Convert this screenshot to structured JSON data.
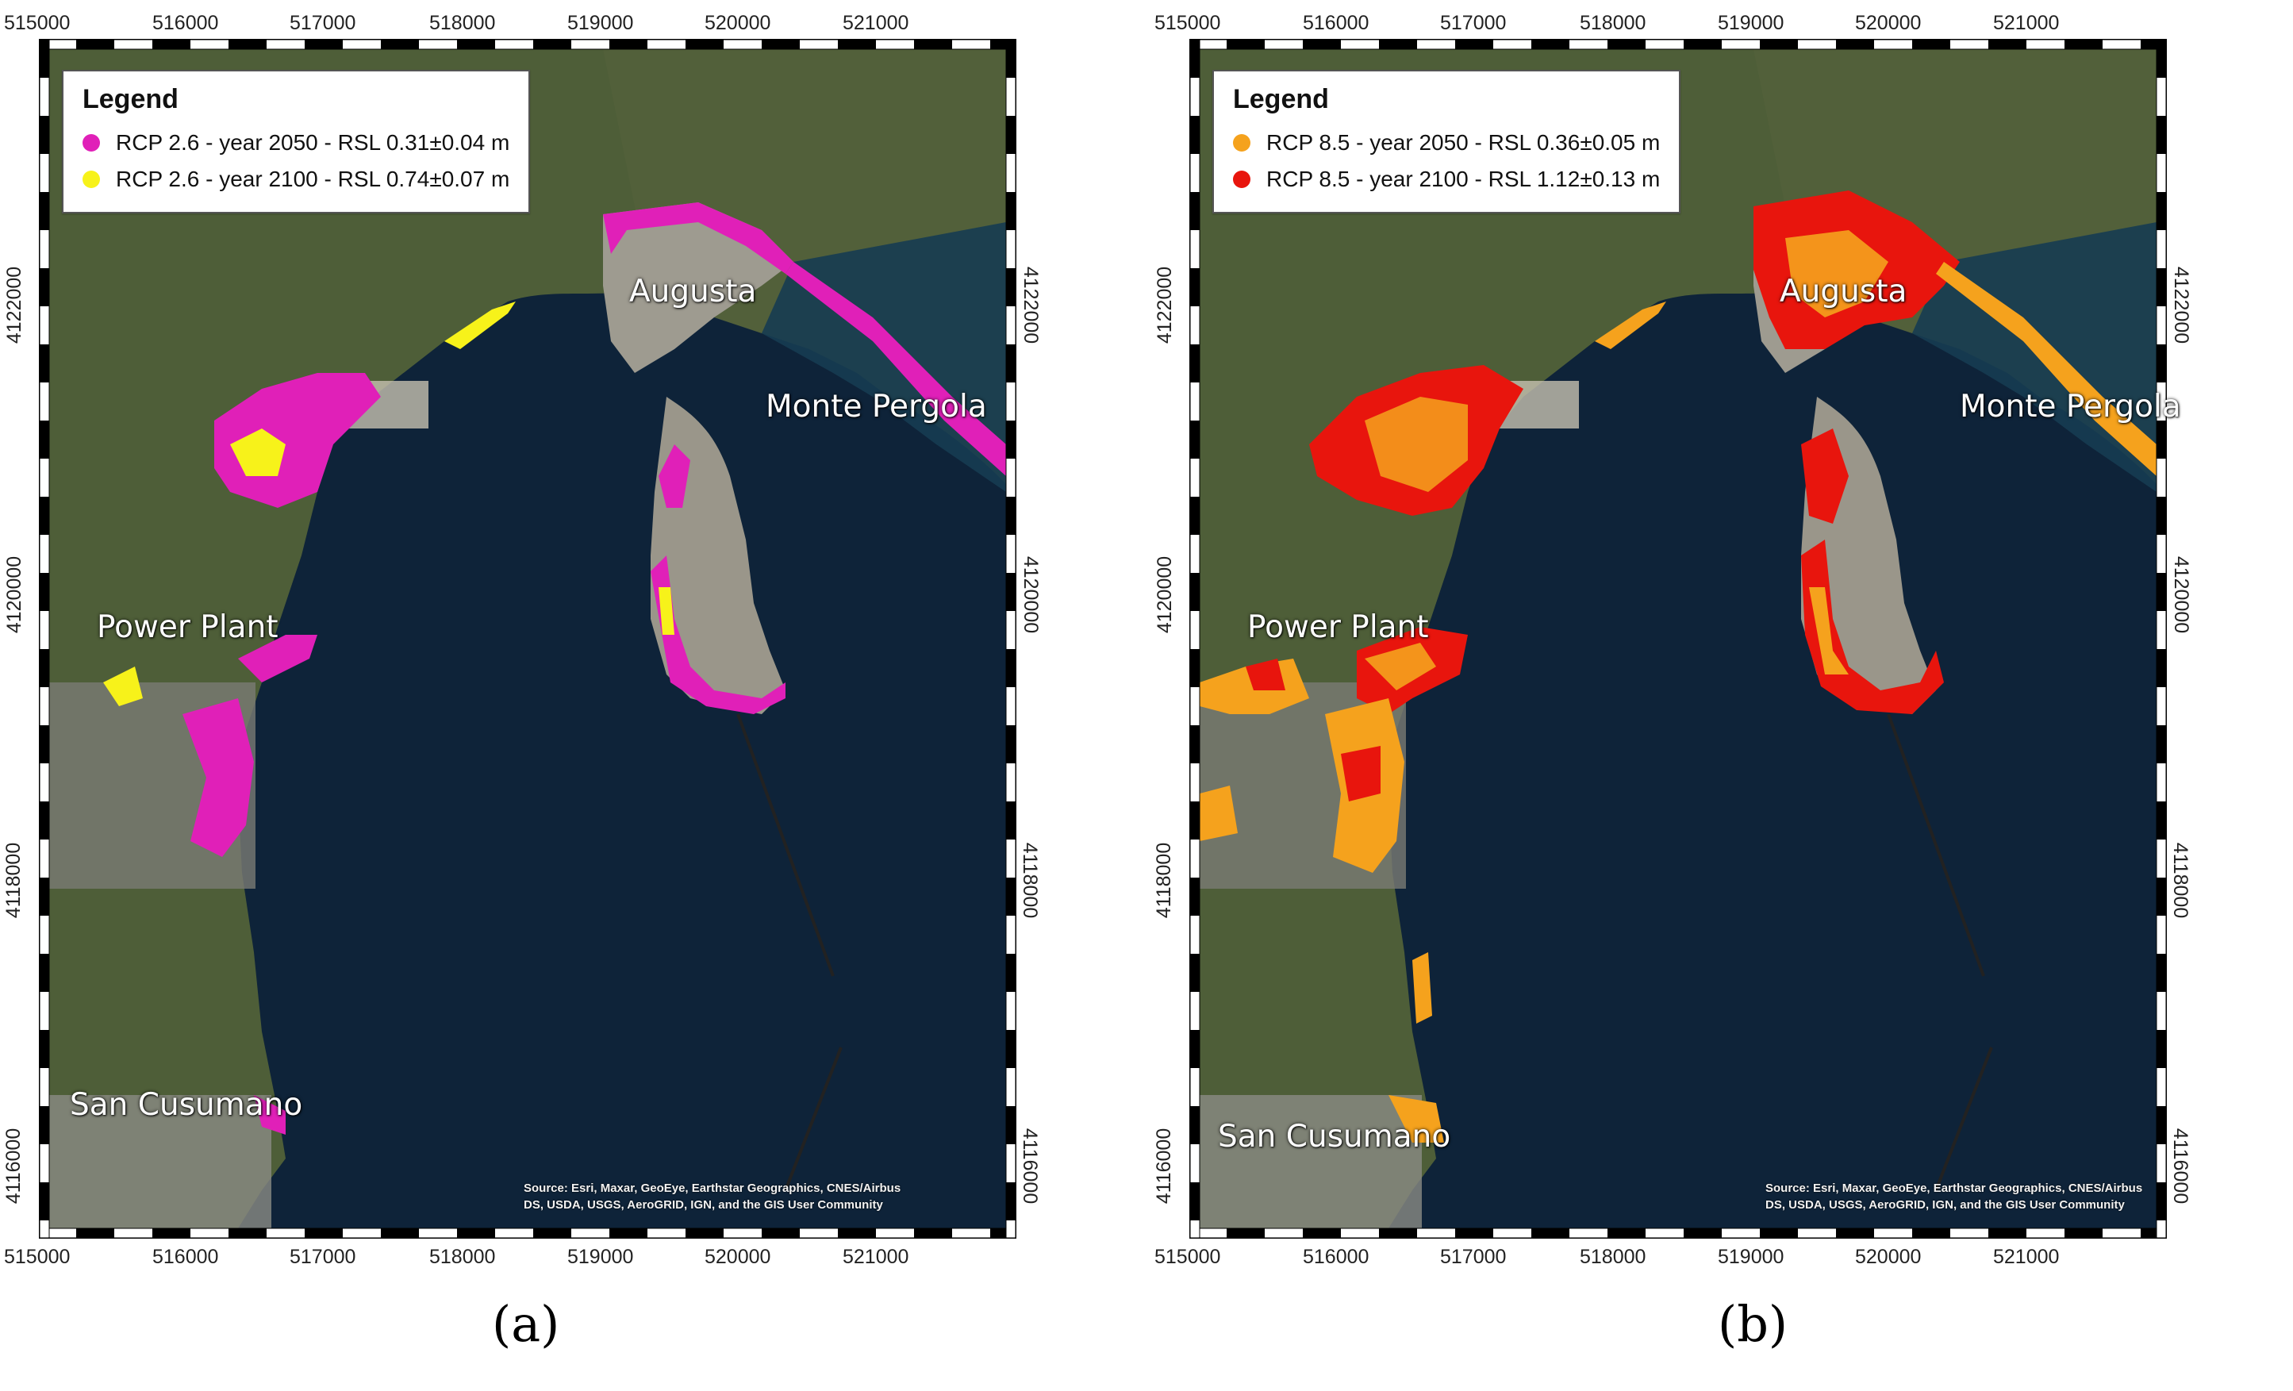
{
  "panels": [
    {
      "caption": "(a)",
      "legend": {
        "title": "Legend",
        "entries": [
          {
            "label": "RCP 2.6 - year 2050 - RSL 0.31±0.04 m",
            "color": "#e020b8"
          },
          {
            "label": "RCP 2.6 - year 2100 - RSL 0.74±0.07 m",
            "color": "#f7f21a"
          }
        ]
      },
      "fill_colors": [
        "#e020b8",
        "#f7f21a"
      ]
    },
    {
      "caption": "(b)",
      "legend": {
        "title": "Legend",
        "entries": [
          {
            "label": "RCP 8.5 - year 2050 - RSL 0.36±0.05 m",
            "color": "#f5a21d"
          },
          {
            "label": "RCP 8.5 - year 2100 - RSL 1.12±0.13 m",
            "color": "#e8150d"
          }
        ]
      },
      "fill_colors": [
        "#f5a21d",
        "#e8150d"
      ]
    }
  ],
  "places": {
    "augusta": "Augusta",
    "monte_pergola": "Monte Pergola",
    "power_plant": "Power Plant",
    "san_cusumano": "San Cusumano"
  },
  "credit": {
    "line1": "Source: Esri, Maxar, GeoEye, Earthstar Geographics, CNES/Airbus",
    "line2": "DS, USDA, USGS, AeroGRID, IGN, and the GIS User Community"
  },
  "x_ticks": [
    "515000",
    "516000",
    "517000",
    "518000",
    "519000",
    "520000",
    "521000"
  ],
  "y_ticks": [
    "4122000",
    "4120000",
    "4118000",
    "4116000"
  ],
  "colors": {
    "sea": "#0d2238",
    "land": "#4a5a36",
    "urban": "#8a8a80",
    "frame": "#000000"
  }
}
